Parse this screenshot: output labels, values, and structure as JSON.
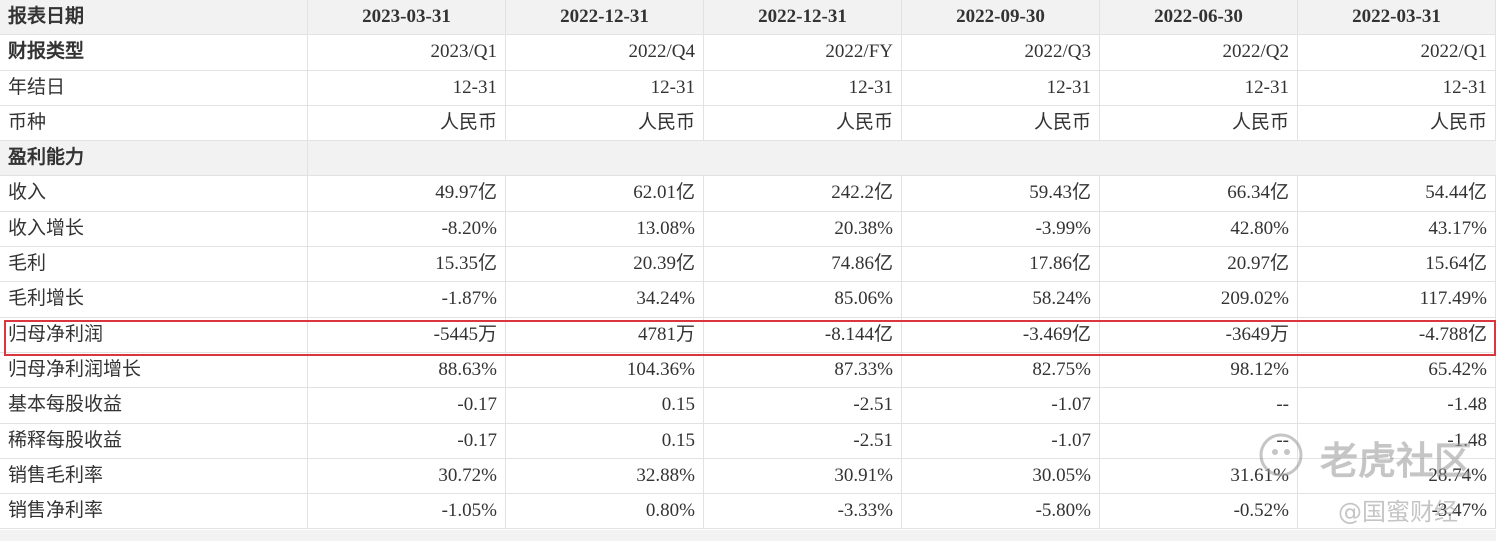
{
  "table": {
    "header": [
      "报表日期",
      "2023-03-31",
      "2022-12-31",
      "2022-12-31",
      "2022-09-30",
      "2022-06-30",
      "2022-03-31"
    ],
    "rows": [
      [
        "财报类型",
        "2023/Q1",
        "2022/Q4",
        "2022/FY",
        "2022/Q3",
        "2022/Q2",
        "2022/Q1"
      ],
      [
        "年结日",
        "12-31",
        "12-31",
        "12-31",
        "12-31",
        "12-31",
        "12-31"
      ],
      [
        "币种",
        "人民币",
        "人民币",
        "人民币",
        "人民币",
        "人民币",
        "人民币"
      ],
      [
        "盈利能力"
      ],
      [
        "收入",
        "49.97亿",
        "62.01亿",
        "242.2亿",
        "59.43亿",
        "66.34亿",
        "54.44亿"
      ],
      [
        "收入增长",
        "-8.20%",
        "13.08%",
        "20.38%",
        "-3.99%",
        "42.80%",
        "43.17%"
      ],
      [
        "毛利",
        "15.35亿",
        "20.39亿",
        "74.86亿",
        "17.86亿",
        "20.97亿",
        "15.64亿"
      ],
      [
        "毛利增长",
        "-1.87%",
        "34.24%",
        "85.06%",
        "58.24%",
        "209.02%",
        "117.49%"
      ],
      [
        "归母净利润",
        "-5445万",
        "4781万",
        "-8.144亿",
        "-3.469亿",
        "-3649万",
        "-4.788亿"
      ],
      [
        "归母净利润增长",
        "88.63%",
        "104.36%",
        "87.33%",
        "82.75%",
        "98.12%",
        "65.42%"
      ],
      [
        "基本每股收益",
        "-0.17",
        "0.15",
        "-2.51",
        "-1.07",
        "--",
        "-1.48"
      ],
      [
        "稀释每股收益",
        "-0.17",
        "0.15",
        "-2.51",
        "-1.07",
        "--",
        "-1.48"
      ],
      [
        "销售毛利率",
        "30.72%",
        "32.88%",
        "30.91%",
        "30.05%",
        "31.61%",
        "28.74%"
      ],
      [
        "销售净利率",
        "-1.05%",
        "0.80%",
        "-3.33%",
        "-5.80%",
        "-0.52%",
        "-3.47%"
      ]
    ]
  },
  "watermark": {
    "brand": "老虎社区",
    "author": "@国蜜财经"
  }
}
